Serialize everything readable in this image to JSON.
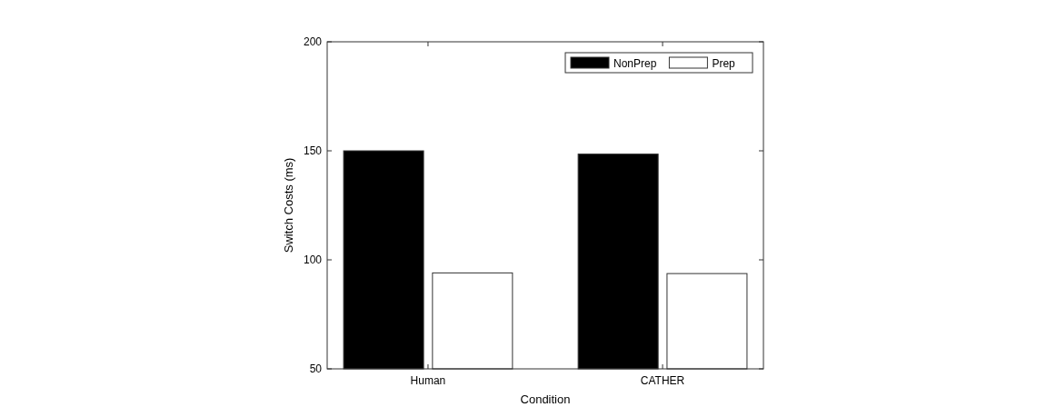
{
  "chart_data": {
    "type": "bar",
    "xlabel": "Condition",
    "ylabel": "Switch Costs (ms)",
    "categories": [
      "Human",
      "CATHER"
    ],
    "series": [
      {
        "name": "NonPrep",
        "color": "#000000",
        "values": [
          150,
          148.5
        ]
      },
      {
        "name": "Prep",
        "color": "#ffffff",
        "values": [
          94,
          93.7
        ]
      }
    ],
    "ylim": [
      50,
      200
    ],
    "yticks": [
      50,
      100,
      150,
      200
    ],
    "legend": "top right"
  }
}
